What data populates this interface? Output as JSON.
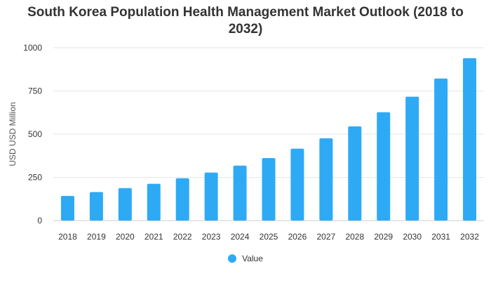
{
  "chart_data": {
    "type": "bar",
    "title": "South Korea Population Health Management Market Outlook (2018 to 2032)",
    "xlabel": "",
    "ylabel": "USD USD Million",
    "categories": [
      "2018",
      "2019",
      "2020",
      "2021",
      "2022",
      "2023",
      "2024",
      "2025",
      "2026",
      "2027",
      "2028",
      "2029",
      "2030",
      "2031",
      "2032"
    ],
    "series": [
      {
        "name": "Value",
        "color": "#2eaaf5",
        "values": [
          143,
          165,
          188,
          213,
          245,
          278,
          318,
          362,
          416,
          476,
          545,
          627,
          717,
          822,
          940
        ]
      }
    ],
    "ylim": [
      0,
      1000
    ],
    "yticks": [
      0,
      250,
      500,
      750,
      1000
    ],
    "grid": true,
    "legend_position": "bottom"
  }
}
